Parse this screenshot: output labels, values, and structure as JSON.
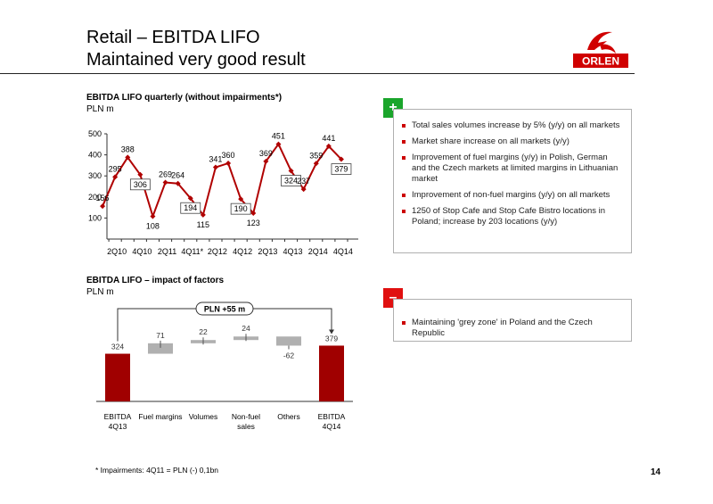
{
  "header": {
    "title_line1": "Retail – EBITDA LIFO",
    "title_line2": "Maintained very good result",
    "logo_text": "ORLEN"
  },
  "colors": {
    "accent": "#c00000",
    "positive": "#1aa52b",
    "negative": "#e01010",
    "bar_dark": "#a00000",
    "bar_grey": "#b0b0b0"
  },
  "chart1": {
    "title": "EBITDA LIFO quarterly (without impairments*)",
    "unit": "PLN m"
  },
  "chart2": {
    "title": "EBITDA LIFO – impact of factors",
    "unit": "PLN m",
    "bracket_label": "PLN +55 m"
  },
  "positives": {
    "badge": "+",
    "items": [
      "Total sales volumes increase by 5% (y/y) on all markets",
      "Market share increase on all markets (y/y)",
      "Improvement of fuel margins (y/y) in Polish, German and the Czech markets at limited margins in Lithuanian market",
      "Improvement of non-fuel margins (y/y) on all markets",
      "1250 of Stop Cafe and Stop Cafe Bistro locations in Poland; increase by 203 locations (y/y)"
    ]
  },
  "negatives": {
    "badge": "–",
    "items": [
      "Maintaining 'grey zone' in Poland and the Czech Republic"
    ]
  },
  "footnote": "* Impairments: 4Q11 = PLN (-) 0,1bn",
  "page_number": "14",
  "chart_data": [
    {
      "type": "line",
      "title": "EBITDA LIFO quarterly (without impairments*)",
      "ylabel": "PLN m",
      "ylim": [
        0,
        500
      ],
      "yticks": [
        100,
        200,
        300,
        400,
        500
      ],
      "x_tick_labels": [
        "2Q10",
        "4Q10",
        "2Q11",
        "4Q11*",
        "2Q12",
        "4Q12",
        "2Q13",
        "4Q13",
        "2Q14",
        "4Q14"
      ],
      "x": [
        "1Q10",
        "2Q10",
        "3Q10",
        "4Q10",
        "1Q11",
        "2Q11",
        "3Q11",
        "4Q11*",
        "1Q12",
        "2Q12",
        "3Q12",
        "4Q12",
        "1Q13",
        "2Q13",
        "3Q13",
        "4Q13",
        "1Q14",
        "2Q14",
        "3Q14",
        "4Q14"
      ],
      "values": [
        156,
        295,
        388,
        306,
        108,
        269,
        264,
        194,
        115,
        341,
        360,
        190,
        123,
        369,
        451,
        324,
        237,
        359,
        441,
        379
      ],
      "boxed_labels": [
        "4Q10",
        "4Q11*",
        "4Q12",
        "4Q13",
        "4Q14"
      ],
      "grid": false
    },
    {
      "type": "bar",
      "subtype": "waterfall",
      "title": "EBITDA LIFO – impact of factors",
      "ylabel": "PLN m",
      "categories": [
        "EBITDA 4Q13",
        "Fuel margins",
        "Volumes",
        "Non-fuel sales",
        "Others",
        "EBITDA 4Q14"
      ],
      "values": [
        324,
        71,
        22,
        24,
        -62,
        379
      ],
      "value_labels": [
        "324",
        "71",
        "22",
        "24",
        "-62",
        "379"
      ],
      "bar_kinds": [
        "total",
        "delta",
        "delta",
        "delta",
        "delta",
        "total"
      ],
      "annotation": "PLN +55 m"
    }
  ]
}
